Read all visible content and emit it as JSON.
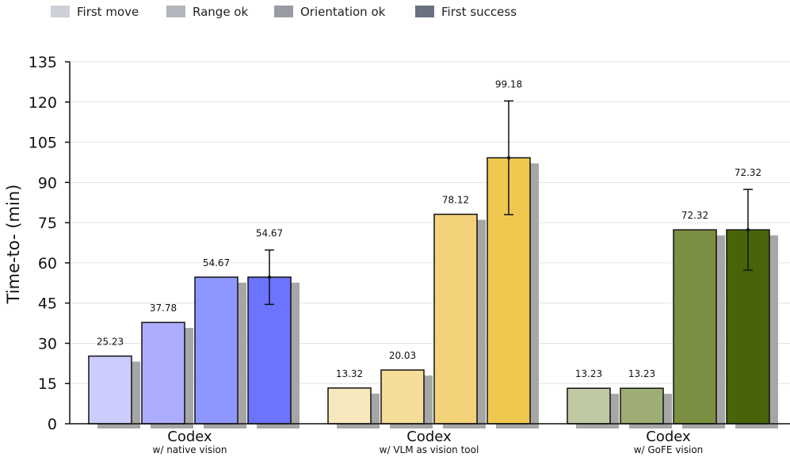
{
  "chart_data": {
    "type": "bar",
    "ylabel": "Time-to- (min)",
    "ylim": [
      0,
      135
    ],
    "yticks": [
      0,
      15,
      30,
      45,
      60,
      75,
      90,
      105,
      120,
      135
    ],
    "grid": true,
    "legend_position": "top-left",
    "legend": [
      {
        "label": "First move",
        "color": "#cdd0d6"
      },
      {
        "label": "Range ok",
        "color": "#b2b5bb"
      },
      {
        "label": "Orientation ok",
        "color": "#9a9ca4"
      },
      {
        "label": "First success",
        "color": "#6a7180"
      }
    ],
    "groups": [
      {
        "title": "Codex",
        "subtitle": "w/ native vision",
        "colors": [
          "#ccccff",
          "#adadff",
          "#8e96ff",
          "#6b73ff"
        ],
        "values": [
          25.23,
          37.78,
          54.67,
          54.67
        ],
        "labels": [
          "25.23",
          "37.78",
          "54.67",
          "54.67"
        ],
        "error_bar": {
          "center": 54.67,
          "low": 44.5,
          "high": 64.8
        }
      },
      {
        "title": "Codex",
        "subtitle": "w/ VLM as vision tool",
        "colors": [
          "#f8e8bd",
          "#f5dc98",
          "#f3d27a",
          "#f0c84f"
        ],
        "values": [
          13.32,
          20.03,
          78.12,
          99.18
        ],
        "labels": [
          "13.32",
          "20.03",
          "78.12",
          "99.18"
        ],
        "error_bar": {
          "center": 99.18,
          "low": 78.0,
          "high": 120.4
        }
      },
      {
        "title": "Codex",
        "subtitle": "w/ GoFE vision",
        "colors": [
          "#bfcaa2",
          "#9dad74",
          "#7a8f41",
          "#476508"
        ],
        "values": [
          13.23,
          13.23,
          72.32,
          72.32
        ],
        "labels": [
          "13.23",
          "13.23",
          "72.32",
          "72.32"
        ],
        "error_bar": {
          "center": 72.32,
          "low": 57.3,
          "high": 87.4
        }
      }
    ]
  }
}
